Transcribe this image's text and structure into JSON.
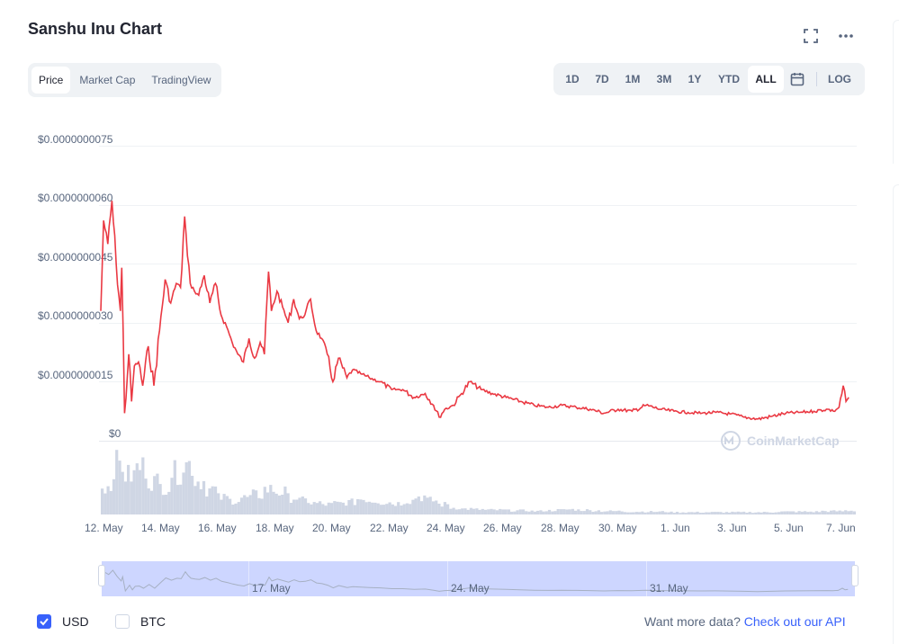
{
  "header": {
    "title": "Sanshu Inu Chart",
    "expand_icon": "expand-icon",
    "more_icon": "more-horizontal-icon"
  },
  "type_tabs": [
    {
      "label": "Price",
      "active": true
    },
    {
      "label": "Market Cap",
      "active": false
    },
    {
      "label": "TradingView",
      "active": false
    }
  ],
  "range_tabs": [
    {
      "label": "1D",
      "active": false
    },
    {
      "label": "7D",
      "active": false
    },
    {
      "label": "1M",
      "active": false
    },
    {
      "label": "3M",
      "active": false
    },
    {
      "label": "1Y",
      "active": false
    },
    {
      "label": "YTD",
      "active": false
    },
    {
      "label": "ALL",
      "active": true
    }
  ],
  "calendar_icon": "calendar-icon",
  "log_label": "LOG",
  "watermark": "CoinMarketCap",
  "colors": {
    "line": "#ea3943",
    "volume": "#cfd6e4",
    "accent": "#3861fb",
    "navigator": "#cdd6ff"
  },
  "chart_data": {
    "type": "line",
    "y_tick_labels": [
      "$0.0000000075",
      "$0.0000000060",
      "$0.0000000045",
      "$0.0000000030",
      "$0.0000000015",
      "$0"
    ],
    "ylim": [
      0,
      7.5e-09
    ],
    "x_tick_labels": [
      "12. May",
      "14. May",
      "16. May",
      "18. May",
      "20. May",
      "22. May",
      "24. May",
      "26. May",
      "28. May",
      "30. May",
      "1. Jun",
      "3. Jun",
      "5. Jun",
      "7. Jun"
    ],
    "xlim_days": [
      12,
      39
    ],
    "series": [
      {
        "x_days": [
          12.0,
          12.1,
          12.25,
          12.4,
          12.55,
          12.7,
          12.75,
          12.85,
          13.0,
          13.1,
          13.2,
          13.35,
          13.5,
          13.7,
          13.9,
          14.1,
          14.3,
          14.5,
          14.7,
          14.85,
          15.0,
          15.1,
          15.2,
          15.35,
          15.5,
          15.7,
          15.9,
          16.1,
          16.3,
          16.5,
          16.7,
          16.9,
          17.1,
          17.3,
          17.5,
          17.7,
          17.85,
          18.0,
          18.1,
          18.3,
          18.5,
          18.7,
          18.9,
          19.1,
          19.3,
          19.5,
          19.7,
          19.9,
          20.1,
          20.3,
          20.5,
          20.8,
          21.0,
          21.3,
          21.6,
          22.0,
          22.4,
          22.8,
          23.2,
          23.6,
          23.9,
          24.1,
          24.3,
          24.6,
          24.9,
          25.2,
          25.6,
          26.0,
          26.5,
          27.0,
          27.5,
          28.0,
          28.5,
          29.0,
          29.5,
          30.0,
          30.5,
          31.0,
          31.5,
          32.0,
          32.5,
          33.0,
          33.5,
          34.0,
          34.5,
          35.0,
          35.5,
          36.0,
          36.5,
          37.0,
          37.5,
          38.0,
          38.2,
          38.4,
          38.55,
          38.65,
          38.75
        ],
        "values": [
          3.3e-09,
          5.6e-09,
          5e-09,
          6.1e-09,
          4.5e-09,
          3.3e-09,
          4.4e-09,
          7e-10,
          2.2e-09,
          1e-09,
          1.9e-09,
          2e-09,
          1.4e-09,
          2.4e-09,
          1.4e-09,
          2.8e-09,
          4.1e-09,
          3.5e-09,
          4e-09,
          3.9e-09,
          5.7e-09,
          4.7e-09,
          4e-09,
          3.8e-09,
          3.7e-09,
          4.2e-09,
          3.5e-09,
          4e-09,
          3.2e-09,
          2.9e-09,
          2.5e-09,
          2.2e-09,
          2e-09,
          2.6e-09,
          2.1e-09,
          2.5e-09,
          2.2e-09,
          4.3e-09,
          3.3e-09,
          3.8e-09,
          3.4e-09,
          3e-09,
          3.6e-09,
          3.1e-09,
          3.2e-09,
          3.6e-09,
          2.8e-09,
          2.6e-09,
          2.2e-09,
          1.5e-09,
          2.1e-09,
          1.6e-09,
          1.8e-09,
          1.7e-09,
          1.6e-09,
          1.5e-09,
          1.3e-09,
          1.3e-09,
          1.1e-09,
          1.2e-09,
          9e-10,
          6e-10,
          8e-10,
          9e-10,
          1.2e-09,
          1.5e-09,
          1.3e-09,
          1.2e-09,
          1.1e-09,
          1e-09,
          9e-10,
          8.5e-10,
          9e-10,
          8.5e-10,
          8e-10,
          7e-10,
          8e-10,
          7.5e-10,
          9e-10,
          8e-10,
          7.5e-10,
          7.2e-10,
          7e-10,
          7.2e-10,
          6.8e-10,
          6e-10,
          5.5e-10,
          6.2e-10,
          7e-10,
          7.2e-10,
          7.5e-10,
          8e-10,
          7.5e-10,
          8.5e-10,
          1.4e-09,
          1e-09,
          1.1e-09
        ]
      }
    ],
    "volume_relative": [
      0.5,
      0.9,
      0.7,
      0.85,
      0.6,
      0.5,
      0.75,
      0.9,
      0.6,
      0.45,
      0.3,
      0.25,
      0.3,
      0.35,
      0.45,
      0.4,
      0.3,
      0.25,
      0.2,
      0.18,
      0.2,
      0.22,
      0.28,
      0.25,
      0.22,
      0.2,
      0.25,
      0.32,
      0.25,
      0.18,
      0.12,
      0.1,
      0.09,
      0.08,
      0.08,
      0.07,
      0.07,
      0.06,
      0.07,
      0.08,
      0.09,
      0.08,
      0.07,
      0.06,
      0.06,
      0.05,
      0.05,
      0.05,
      0.05,
      0.04,
      0.04,
      0.04,
      0.04,
      0.04,
      0.04,
      0.04,
      0.04,
      0.04,
      0.05,
      0.05,
      0.05,
      0.05,
      0.06,
      0.06,
      0.07
    ],
    "navigator_labels": [
      "17. May",
      "24. May",
      "31. May"
    ],
    "grid": true
  },
  "footer": {
    "usd_label": "USD",
    "btc_label": "BTC",
    "usd_checked": true,
    "btc_checked": false,
    "more_data_text": "Want more data?",
    "api_link_text": "Check out our API"
  }
}
